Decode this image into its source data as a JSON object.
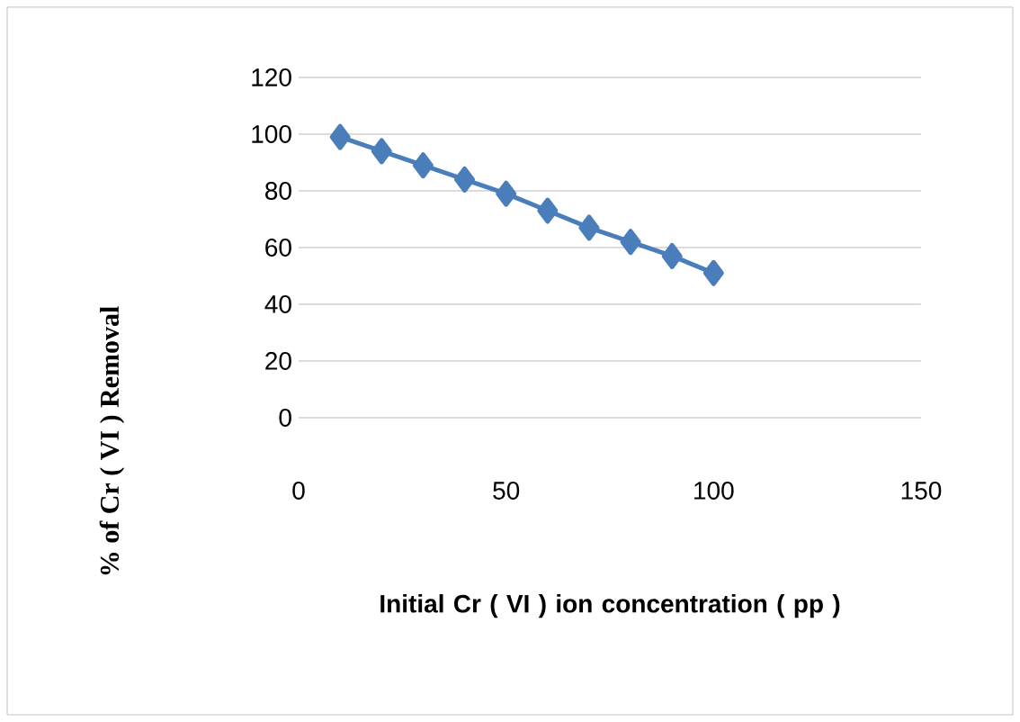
{
  "chart_data": {
    "type": "line",
    "xlabel": "Initial Cr ( VI ) ion concentration ( pp )",
    "ylabel": "% of Cr ( VI ) Removal",
    "x": [
      10,
      20,
      30,
      40,
      50,
      60,
      70,
      80,
      90,
      100
    ],
    "series": [
      {
        "color": "#4a7ebb",
        "values": [
          99,
          94,
          89,
          84,
          79,
          73,
          67,
          62,
          57,
          51
        ]
      }
    ],
    "xlim": [
      0,
      150
    ],
    "ylim": [
      0,
      120
    ],
    "xticks": [
      0,
      50,
      100,
      150
    ],
    "yticks": [
      0,
      20,
      40,
      60,
      80,
      100,
      120
    ],
    "grid": "y",
    "marker": "diamond",
    "line_style": "solid"
  }
}
